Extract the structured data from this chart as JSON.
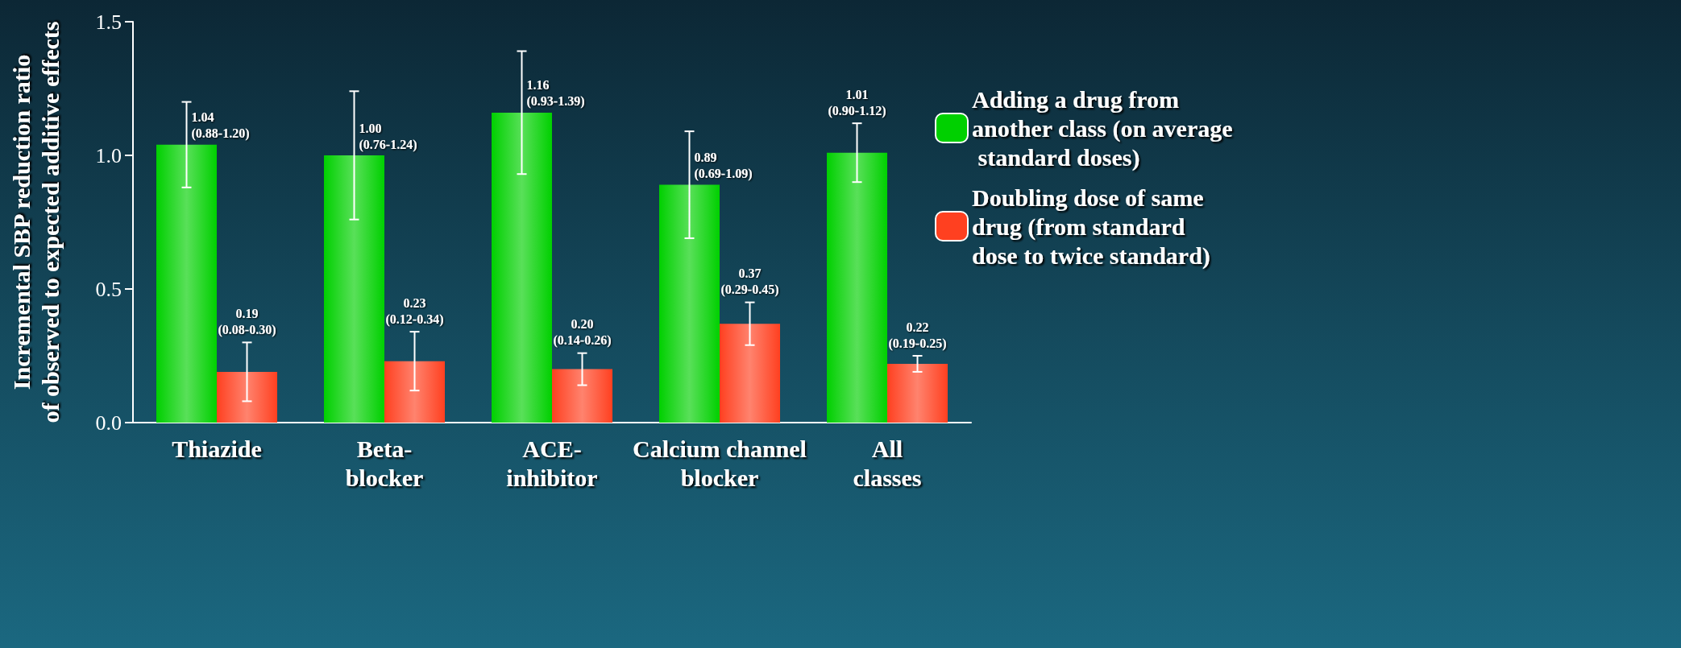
{
  "chart_data": {
    "type": "bar",
    "ylabel": "Incremental SBP reduction ratio\nof observed to expected additive effects",
    "categories": [
      "Thiazide",
      "Beta-\nblocker",
      "ACE-\ninhibitor",
      "Calcium channel\nblocker",
      "All\nclasses"
    ],
    "series": [
      {
        "name": "Adding a drug from another class (on average standard doses)",
        "color": "#00d000",
        "values": [
          1.04,
          1.0,
          1.16,
          0.89,
          1.01
        ],
        "errors": [
          [
            0.88,
            1.2
          ],
          [
            0.76,
            1.24
          ],
          [
            0.93,
            1.39
          ],
          [
            0.69,
            1.09
          ],
          [
            0.9,
            1.12
          ]
        ],
        "value_labels": [
          "1.04\n(0.88-1.20)",
          "1.00\n(0.76-1.24)",
          "1.16\n(0.93-1.39)",
          "0.89\n(0.69-1.09)",
          "1.01\n(0.90-1.12)"
        ]
      },
      {
        "name": "Doubling dose of same drug (from standard dose to twice standard)",
        "color": "#ff4020",
        "values": [
          0.19,
          0.23,
          0.2,
          0.37,
          0.22
        ],
        "errors": [
          [
            0.08,
            0.3
          ],
          [
            0.12,
            0.34
          ],
          [
            0.14,
            0.26
          ],
          [
            0.29,
            0.45
          ],
          [
            0.19,
            0.25
          ]
        ],
        "value_labels": [
          "0.19\n(0.08-0.30)",
          "0.23\n(0.12-0.34)",
          "0.20\n(0.14-0.26)",
          "0.37\n(0.29-0.45)",
          "0.22\n(0.19-0.25)"
        ]
      }
    ],
    "ylim": [
      0,
      1.5
    ],
    "yticks": [
      {
        "value": 0,
        "label": "0.0"
      },
      {
        "value": 0.5,
        "label": "0.5"
      },
      {
        "value": 1,
        "label": "1.0"
      },
      {
        "value": 1.5,
        "label": "1.5"
      }
    ],
    "grid": false,
    "legend": "right"
  }
}
